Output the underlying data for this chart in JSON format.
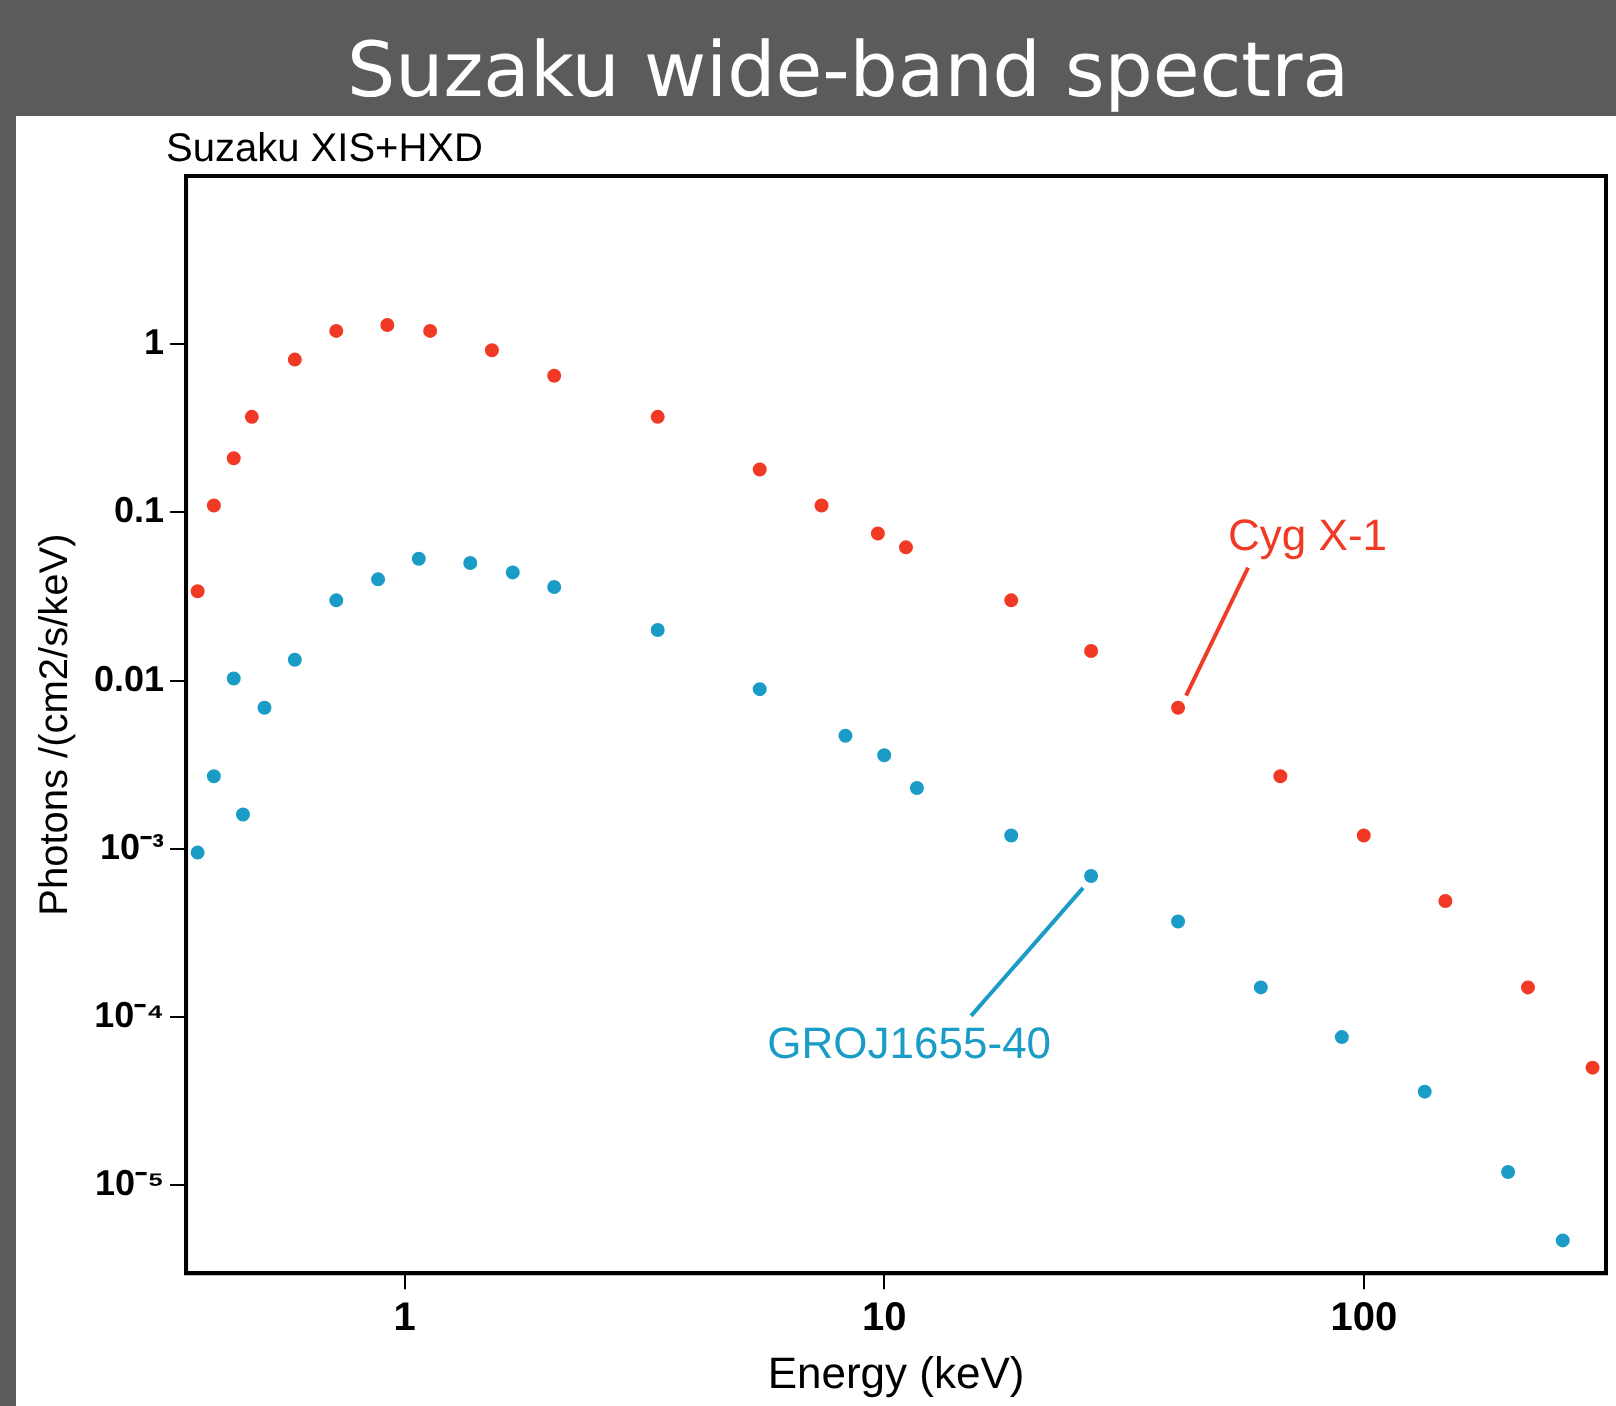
{
  "chart_data": {
    "type": "scatter",
    "title": "Suzaku wide-band spectra",
    "xlabel": "Energy (keV)",
    "ylabel": "Photons /(cm2/s/keV)",
    "annotations": [
      "Suzaku XIS+HXD"
    ],
    "log": "xy",
    "grid": false,
    "legend": false,
    "marker": "circle",
    "xlim": [
      0.35,
      320
    ],
    "ylim": [
      3e-06,
      10
    ],
    "xticks": [
      1,
      10,
      100
    ],
    "yticks": [
      1,
      0.1,
      0.01,
      {
        "value": 0.001,
        "label": "10⁻³"
      },
      {
        "value": 0.0001,
        "label": "10⁻⁴"
      },
      {
        "value": 1e-05,
        "label": "10⁻⁵"
      }
    ],
    "series": [
      {
        "name": "Cyg X-1",
        "color": "#f03a25",
        "x": [
          0.37,
          0.4,
          0.44,
          0.48,
          0.59,
          0.72,
          0.92,
          1.13,
          1.52,
          2.05,
          3.37,
          5.5,
          7.4,
          9.7,
          11.1,
          18.4,
          27,
          41,
          67,
          100,
          148,
          220,
          300
        ],
        "values": [
          0.034,
          0.11,
          0.21,
          0.37,
          0.81,
          1.2,
          1.3,
          1.2,
          0.92,
          0.65,
          0.37,
          0.18,
          0.11,
          0.075,
          0.062,
          0.03,
          0.015,
          0.0069,
          0.0027,
          0.0012,
          0.00049,
          0.00015,
          5e-05
        ]
      },
      {
        "name": "GROJ1655-40",
        "color": "#1a9cc6",
        "x": [
          0.37,
          0.4,
          0.44,
          0.46,
          0.51,
          0.59,
          0.72,
          0.88,
          1.07,
          1.37,
          1.68,
          2.05,
          3.37,
          5.5,
          8.3,
          10,
          11.7,
          18.4,
          27,
          41,
          61,
          90,
          134,
          200,
          260
        ],
        "values": [
          0.00095,
          0.0027,
          0.0103,
          0.0016,
          0.0069,
          0.0133,
          0.03,
          0.04,
          0.053,
          0.05,
          0.044,
          0.036,
          0.02,
          0.0089,
          0.0047,
          0.0036,
          0.0023,
          0.0012,
          0.00069,
          0.00037,
          0.00015,
          7.6e-05,
          3.6e-05,
          1.2e-05,
          4.7e-06
        ]
      }
    ]
  }
}
